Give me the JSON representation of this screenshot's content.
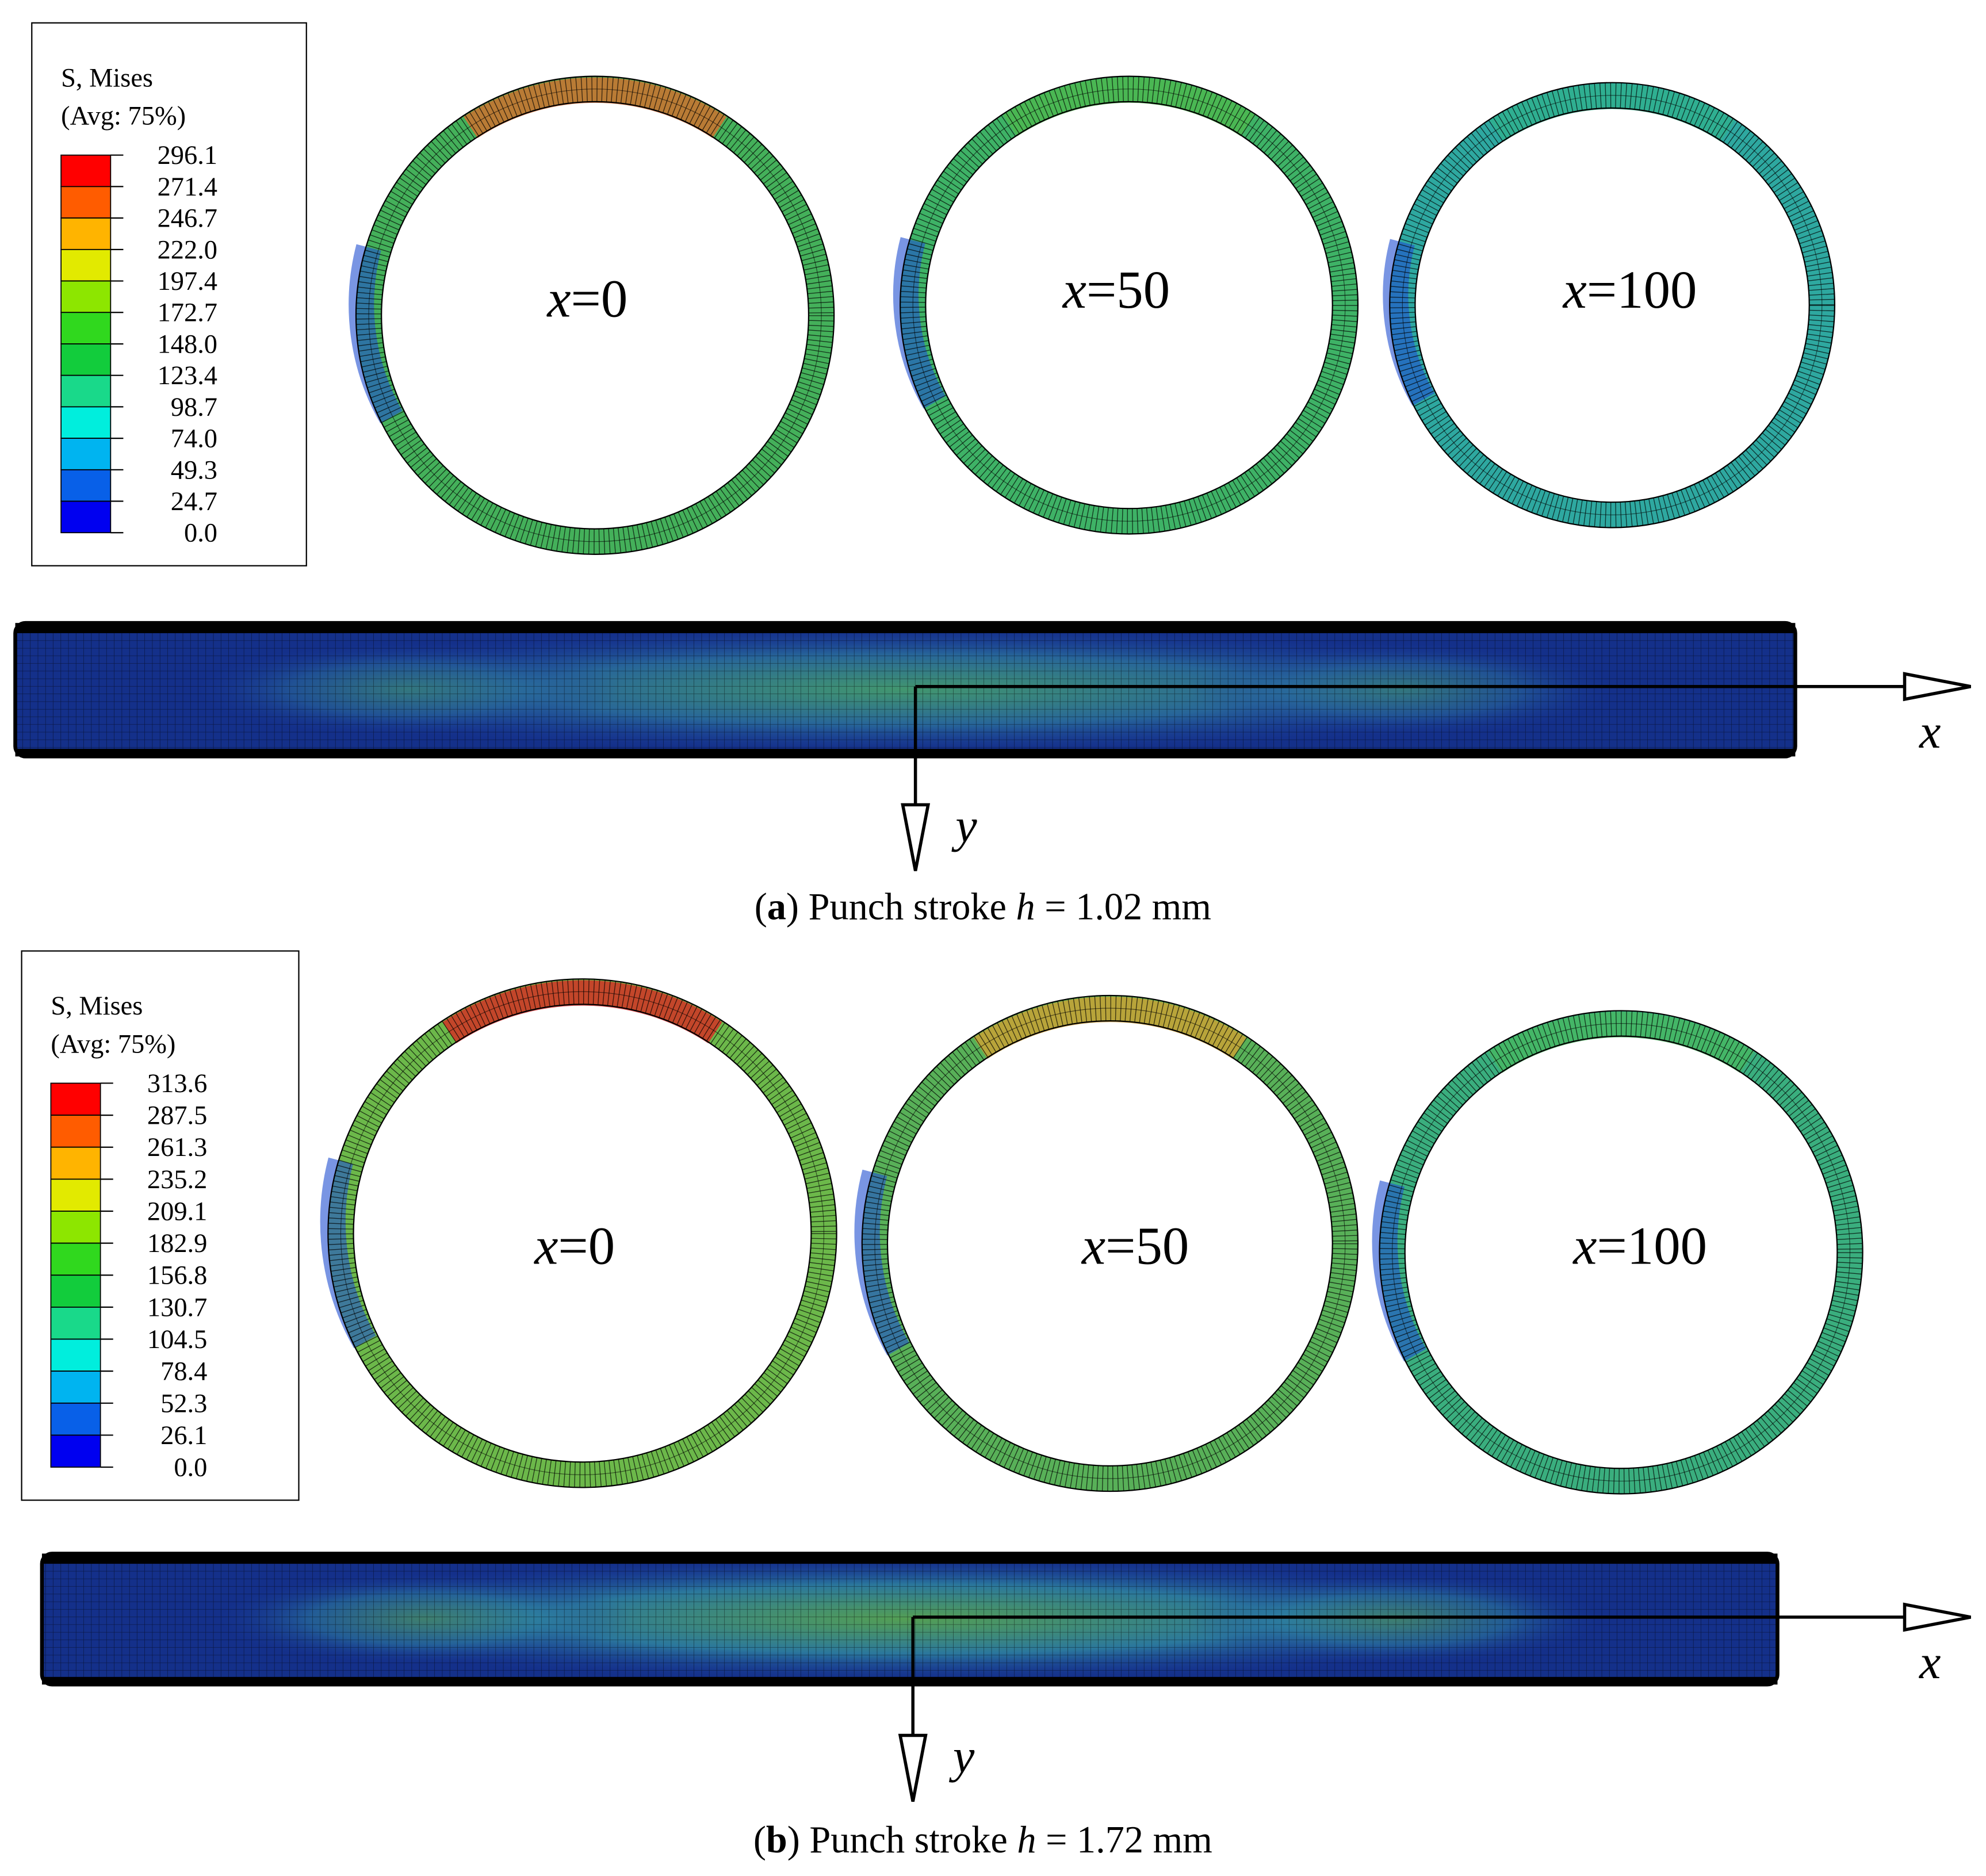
{
  "panels": [
    {
      "legend": {
        "title": [
          "S, Mises",
          "(Avg: 75%)"
        ],
        "values": [
          "296.1",
          "271.4",
          "246.7",
          "222.0",
          "197.4",
          "172.7",
          "148.0",
          "123.4",
          "98.7",
          "74.0",
          "49.3",
          "24.7",
          "0.0"
        ]
      },
      "sections": [
        {
          "var": "x",
          "eq": "=0"
        },
        {
          "var": "x",
          "eq": "=50"
        },
        {
          "var": "x",
          "eq": "=100"
        }
      ],
      "axes": {
        "x": "x",
        "y": "y"
      },
      "caption": [
        "(",
        "a",
        ") Punch stroke ",
        "h",
        " = 1.02 mm"
      ]
    },
    {
      "legend": {
        "title": [
          "S, Mises",
          "(Avg: 75%)"
        ],
        "values": [
          "313.6",
          "287.5",
          "261.3",
          "235.2",
          "209.1",
          "182.9",
          "156.8",
          "130.7",
          "104.5",
          "78.4",
          "52.3",
          "26.1",
          "0.0"
        ]
      },
      "sections": [
        {
          "var": "x",
          "eq": "=0"
        },
        {
          "var": "x",
          "eq": "=50"
        },
        {
          "var": "x",
          "eq": "=100"
        }
      ],
      "axes": {
        "x": "x",
        "y": "y"
      },
      "caption": [
        "(",
        "b",
        ") Punch stroke ",
        "h",
        " = 1.72 mm"
      ]
    }
  ]
}
